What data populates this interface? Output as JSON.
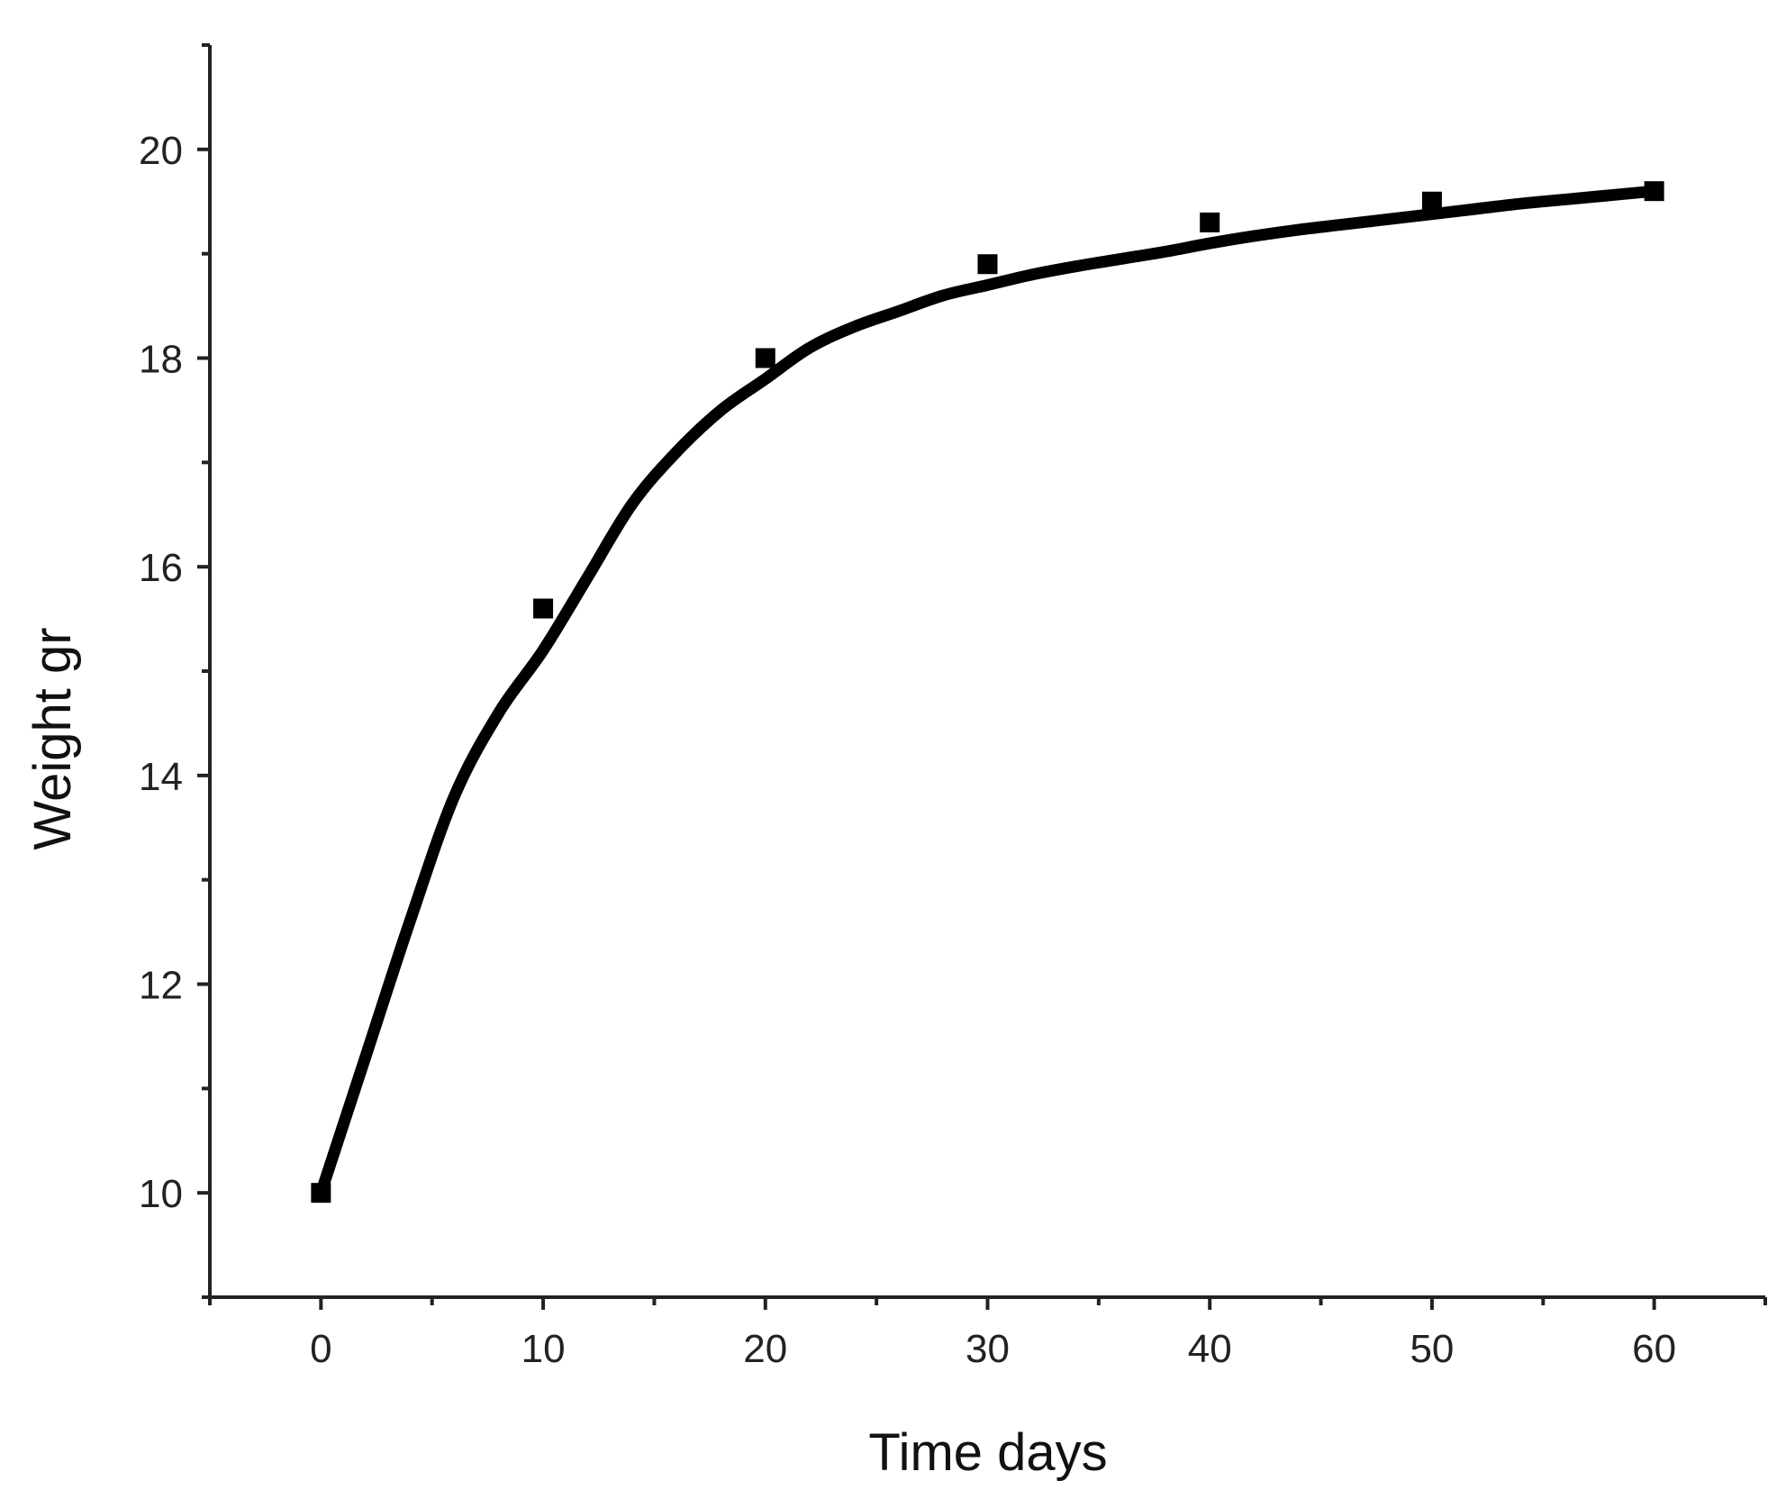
{
  "chart_data": {
    "type": "scatter",
    "title": "",
    "xlabel": "Time days",
    "ylabel": "Weight gr",
    "xlim": [
      -5,
      65
    ],
    "ylim": [
      9,
      21
    ],
    "x_ticks": [
      0,
      10,
      20,
      30,
      40,
      50,
      60
    ],
    "x_minor_ticks": [
      -5,
      5,
      15,
      25,
      35,
      45,
      55,
      65
    ],
    "y_ticks": [
      10,
      12,
      14,
      16,
      18,
      20
    ],
    "y_minor_ticks": [
      9,
      11,
      13,
      15,
      17,
      19,
      21
    ],
    "grid": false,
    "series": [
      {
        "marker": "square",
        "color": "#000000",
        "x": [
          0,
          10,
          20,
          30,
          40,
          50,
          60
        ],
        "y": [
          10.0,
          15.6,
          18.0,
          18.9,
          19.3,
          19.5,
          19.6
        ]
      }
    ],
    "fit_curve": {
      "color": "#000000",
      "x": [
        0,
        2,
        4,
        6,
        8,
        10,
        12,
        14,
        16,
        18,
        20,
        22,
        24,
        26,
        28,
        30,
        32,
        34,
        36,
        38,
        40,
        42,
        44,
        46,
        48,
        50,
        52,
        54,
        56,
        58,
        60
      ],
      "y": [
        10.0,
        11.3,
        12.6,
        13.8,
        14.6,
        15.2,
        15.9,
        16.6,
        17.1,
        17.5,
        17.8,
        18.1,
        18.3,
        18.45,
        18.6,
        18.7,
        18.8,
        18.88,
        18.95,
        19.02,
        19.1,
        19.17,
        19.23,
        19.28,
        19.33,
        19.38,
        19.43,
        19.48,
        19.52,
        19.56,
        19.6
      ]
    }
  }
}
